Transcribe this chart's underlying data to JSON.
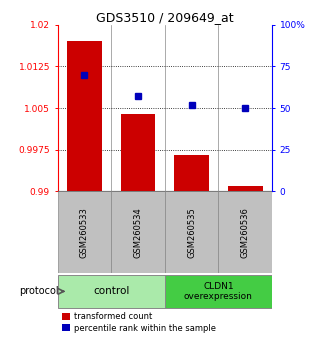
{
  "title": "GDS3510 / 209649_at",
  "samples": [
    "GSM260533",
    "GSM260534",
    "GSM260535",
    "GSM260536"
  ],
  "bar_values": [
    1.017,
    1.004,
    0.9965,
    0.991
  ],
  "bar_base": 0.99,
  "scatter_pct": [
    70,
    57,
    52,
    50
  ],
  "ylim_left": [
    0.99,
    1.02
  ],
  "ylim_right": [
    0,
    100
  ],
  "yticks_left": [
    0.99,
    0.9975,
    1.005,
    1.0125,
    1.02
  ],
  "ytick_labels_left": [
    "0.99",
    "0.9975",
    "1.005",
    "1.0125",
    "1.02"
  ],
  "yticks_right": [
    0,
    25,
    50,
    75,
    100
  ],
  "ytick_labels_right": [
    "0",
    "25",
    "50",
    "75",
    "100%"
  ],
  "hline_values": [
    1.0125,
    1.005,
    0.9975
  ],
  "bar_color": "#cc0000",
  "scatter_color": "#0000bb",
  "group1_label": "control",
  "group1_color": "#aaeaaa",
  "group2_label": "CLDN1\noverexpression",
  "group2_color": "#44cc44",
  "protocol_label": "protocol",
  "legend_bar_label": "transformed count",
  "legend_scatter_label": "percentile rank within the sample",
  "sample_box_color": "#c0c0c0",
  "bar_width": 0.65
}
